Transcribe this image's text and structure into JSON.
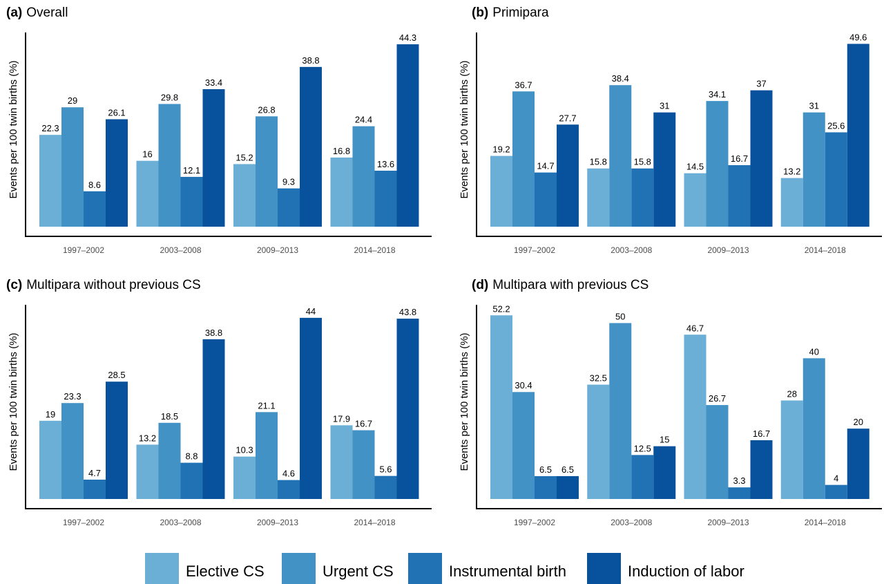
{
  "chart_data": [
    {
      "type": "bar",
      "title_tag": "(a)",
      "title": "Overall",
      "xlabel": "",
      "ylabel": "Events per 100 twin births (%)",
      "categories": [
        "1997–2002",
        "2003–2008",
        "2009–2013",
        "2014–2018"
      ],
      "series": [
        {
          "name": "Elective CS",
          "values": [
            22.3,
            16,
            15.2,
            16.8
          ]
        },
        {
          "name": "Urgent CS",
          "values": [
            29,
            29.8,
            26.8,
            24.4
          ]
        },
        {
          "name": "Instrumental birth",
          "values": [
            8.6,
            12.1,
            9.3,
            13.6
          ]
        },
        {
          "name": "Induction of labor",
          "values": [
            26.1,
            33.4,
            38.8,
            44.3
          ]
        }
      ],
      "ylim": [
        0,
        47
      ]
    },
    {
      "type": "bar",
      "title_tag": "(b)",
      "title": "Primipara",
      "xlabel": "",
      "ylabel": "Events per 100 twin births (%)",
      "categories": [
        "1997–2002",
        "2003–2008",
        "2009–2013",
        "2014–2018"
      ],
      "series": [
        {
          "name": "Elective CS",
          "values": [
            19.2,
            15.8,
            14.5,
            13.2
          ]
        },
        {
          "name": "Urgent CS",
          "values": [
            36.7,
            38.4,
            34.1,
            31
          ]
        },
        {
          "name": "Instrumental birth",
          "values": [
            14.7,
            15.8,
            16.7,
            25.6
          ]
        },
        {
          "name": "Induction of labor",
          "values": [
            27.7,
            31,
            37,
            49.6
          ]
        }
      ],
      "ylim": [
        0,
        52.5
      ]
    },
    {
      "type": "bar",
      "title_tag": "(c)",
      "title": "Multipara without previous CS",
      "xlabel": "",
      "ylabel": "Events per 100 twin births (%)",
      "categories": [
        "1997–2002",
        "2003–2008",
        "2009–2013",
        "2014–2018"
      ],
      "series": [
        {
          "name": "Elective CS",
          "values": [
            19,
            13.2,
            10.3,
            17.9
          ]
        },
        {
          "name": "Urgent CS",
          "values": [
            23.3,
            18.5,
            21.1,
            16.7
          ]
        },
        {
          "name": "Instrumental birth",
          "values": [
            4.7,
            8.8,
            4.6,
            5.6
          ]
        },
        {
          "name": "Induction of labor",
          "values": [
            28.5,
            38.8,
            44,
            43.8
          ]
        }
      ],
      "ylim": [
        0,
        47
      ]
    },
    {
      "type": "bar",
      "title_tag": "(d)",
      "title": "Multipara with previous CS",
      "xlabel": "",
      "ylabel": "Events per 100 twin births (%)",
      "categories": [
        "1997–2002",
        "2003–2008",
        "2009–2013",
        "2014–2018"
      ],
      "series": [
        {
          "name": "Elective CS",
          "values": [
            52.2,
            32.5,
            46.7,
            28
          ]
        },
        {
          "name": "Urgent CS",
          "values": [
            30.4,
            50,
            26.7,
            40
          ]
        },
        {
          "name": "Instrumental birth",
          "values": [
            6.5,
            12.5,
            3.3,
            4
          ]
        },
        {
          "name": "Induction of labor",
          "values": [
            6.5,
            15,
            16.7,
            20
          ]
        }
      ],
      "ylim": [
        0,
        55
      ]
    }
  ],
  "legend": {
    "position": "bottom",
    "items": [
      "Elective CS",
      "Urgent CS",
      "Instrumental birth",
      "Induction of labor"
    ]
  },
  "colors": {
    "Elective CS": "#6baed6",
    "Urgent CS": "#4292c6",
    "Instrumental birth": "#2171b5",
    "Induction of labor": "#08519c",
    "axis": "#000000",
    "tick_text": "#4d4d4d"
  }
}
